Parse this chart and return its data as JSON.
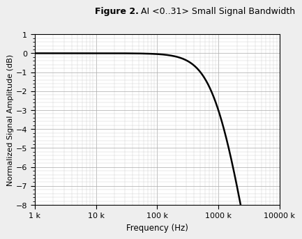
{
  "title_bold": "Figure 2.",
  "title_regular": " AI <0..31> Small Signal Bandwidth",
  "xlabel": "Frequency (Hz)",
  "ylabel": "Normalized Signal Amplitude (dB)",
  "xmin": 1000,
  "xmax": 10000000,
  "ymin": -8,
  "ymax": 1,
  "yticks": [
    1,
    0,
    -1,
    -2,
    -3,
    -4,
    -5,
    -6,
    -7,
    -8
  ],
  "xtick_values": [
    1000,
    10000,
    100000,
    1000000,
    10000000
  ],
  "xtick_labels": [
    "1 k",
    "10 k",
    "100 k",
    "1000 k",
    "10000 k"
  ],
  "line_color": "#000000",
  "line_width": 1.8,
  "bg_color": "#ffffff",
  "grid_major_color": "#aaaaaa",
  "grid_minor_color": "#cccccc",
  "fc_hz": 1000000,
  "figure_bg": "#eeeeee",
  "title_fontsize": 9,
  "axis_label_fontsize": 8.5,
  "tick_fontsize": 8
}
